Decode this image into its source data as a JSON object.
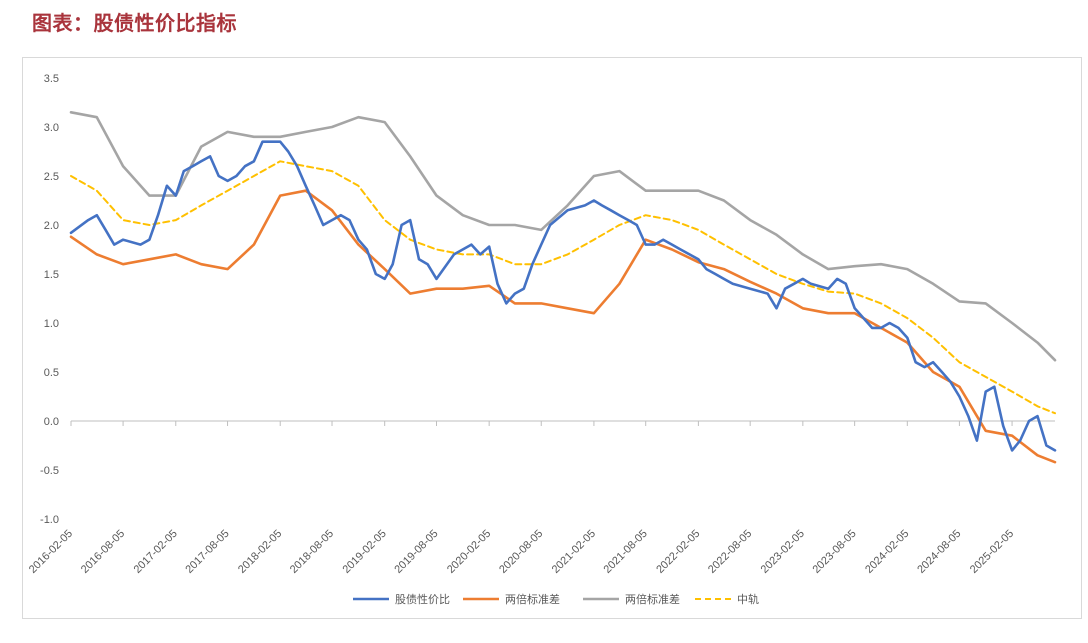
{
  "page": {
    "title": "图表：股债性价比指标"
  },
  "chart_data": {
    "type": "line",
    "title": "",
    "xlabel": "",
    "ylabel": "",
    "ylim": [
      -1.0,
      3.5
    ],
    "yticks": [
      -1.0,
      -0.5,
      0.0,
      0.5,
      1.0,
      1.5,
      2.0,
      2.5,
      3.0,
      3.5
    ],
    "ytick_labels": [
      "-1.0",
      "-0.5",
      "0.0",
      "0.5",
      "1.0",
      "1.5",
      "2.0",
      "2.5",
      "3.0",
      "3.5"
    ],
    "xticks": [
      "2016-02-05",
      "2016-08-05",
      "2017-02-05",
      "2017-08-05",
      "2018-02-05",
      "2018-08-05",
      "2019-02-05",
      "2019-08-05",
      "2020-02-05",
      "2020-08-05",
      "2021-02-05",
      "2021-08-05",
      "2022-02-05",
      "2022-08-05",
      "2023-02-05",
      "2023-08-05",
      "2024-02-05",
      "2024-08-05",
      "2025-02-05"
    ],
    "xlim": [
      "2016-02-05",
      "2025-07-05"
    ],
    "grid": false,
    "legend": "bottom",
    "series": [
      {
        "name": "股债性价比",
        "color": "#4472c4",
        "style": "solid",
        "x": [
          "2016-02-05",
          "2016-04-05",
          "2016-05-05",
          "2016-06-05",
          "2016-07-05",
          "2016-08-05",
          "2016-10-05",
          "2016-11-05",
          "2016-12-05",
          "2017-01-05",
          "2017-02-05",
          "2017-03-05",
          "2017-04-05",
          "2017-05-05",
          "2017-06-05",
          "2017-07-05",
          "2017-08-05",
          "2017-09-05",
          "2017-10-05",
          "2017-11-05",
          "2017-12-05",
          "2018-01-05",
          "2018-02-05",
          "2018-03-05",
          "2018-04-05",
          "2018-05-05",
          "2018-06-05",
          "2018-07-05",
          "2018-08-05",
          "2018-09-05",
          "2018-10-05",
          "2018-11-05",
          "2018-12-05",
          "2019-01-05",
          "2019-02-05",
          "2019-03-05",
          "2019-04-05",
          "2019-05-05",
          "2019-06-05",
          "2019-07-05",
          "2019-08-05",
          "2019-10-05",
          "2019-12-05",
          "2020-01-05",
          "2020-02-05",
          "2020-03-05",
          "2020-04-05",
          "2020-05-05",
          "2020-06-05",
          "2020-07-05",
          "2020-08-05",
          "2020-09-05",
          "2020-11-05",
          "2021-01-05",
          "2021-02-05",
          "2021-03-05",
          "2021-04-05",
          "2021-05-05",
          "2021-06-05",
          "2021-07-05",
          "2021-08-05",
          "2021-09-05",
          "2021-10-05",
          "2021-11-05",
          "2021-12-05",
          "2022-01-05",
          "2022-02-05",
          "2022-03-05",
          "2022-04-05",
          "2022-05-05",
          "2022-06-05",
          "2022-08-05",
          "2022-10-05",
          "2022-11-05",
          "2022-12-05",
          "2023-01-05",
          "2023-02-05",
          "2023-03-05",
          "2023-05-05",
          "2023-06-05",
          "2023-07-05",
          "2023-08-05",
          "2023-09-05",
          "2023-10-05",
          "2023-11-05",
          "2023-12-05",
          "2024-01-05",
          "2024-02-05",
          "2024-03-05",
          "2024-04-05",
          "2024-05-05",
          "2024-06-05",
          "2024-07-05",
          "2024-08-05",
          "2024-09-05",
          "2024-10-05",
          "2024-11-05",
          "2024-12-05",
          "2025-01-05",
          "2025-02-05",
          "2025-03-05",
          "2025-04-05",
          "2025-05-05",
          "2025-06-05",
          "2025-07-05"
        ],
        "y": [
          1.92,
          2.05,
          2.1,
          1.95,
          1.8,
          1.85,
          1.8,
          1.85,
          2.1,
          2.4,
          2.3,
          2.55,
          2.6,
          2.65,
          2.7,
          2.5,
          2.45,
          2.5,
          2.6,
          2.65,
          2.85,
          2.85,
          2.85,
          2.75,
          2.6,
          2.4,
          2.2,
          2.0,
          2.05,
          2.1,
          2.05,
          1.85,
          1.75,
          1.5,
          1.45,
          1.6,
          2.0,
          2.05,
          1.65,
          1.6,
          1.45,
          1.7,
          1.8,
          1.7,
          1.78,
          1.4,
          1.2,
          1.3,
          1.35,
          1.6,
          1.8,
          2.0,
          2.15,
          2.2,
          2.25,
          2.2,
          2.15,
          2.1,
          2.05,
          2.0,
          1.8,
          1.8,
          1.85,
          1.8,
          1.75,
          1.7,
          1.65,
          1.55,
          1.5,
          1.45,
          1.4,
          1.35,
          1.3,
          1.15,
          1.35,
          1.4,
          1.45,
          1.4,
          1.35,
          1.45,
          1.4,
          1.15,
          1.05,
          0.95,
          0.95,
          1.0,
          0.95,
          0.85,
          0.6,
          0.55,
          0.6,
          0.5,
          0.4,
          0.25,
          0.05,
          -0.2,
          0.3,
          0.35,
          -0.05,
          -0.3,
          -0.2,
          0.0,
          0.05,
          -0.25,
          -0.3
        ]
      },
      {
        "name": "两倍标准差",
        "color": "#ed7d31",
        "style": "solid",
        "x": [
          "2016-02-05",
          "2016-05-05",
          "2016-08-05",
          "2016-11-05",
          "2017-02-05",
          "2017-05-05",
          "2017-08-05",
          "2017-11-05",
          "2018-02-05",
          "2018-05-05",
          "2018-08-05",
          "2018-11-05",
          "2019-02-05",
          "2019-05-05",
          "2019-08-05",
          "2019-11-05",
          "2020-02-05",
          "2020-05-05",
          "2020-08-05",
          "2020-11-05",
          "2021-02-05",
          "2021-05-05",
          "2021-08-05",
          "2021-11-05",
          "2022-02-05",
          "2022-05-05",
          "2022-08-05",
          "2022-11-05",
          "2023-02-05",
          "2023-05-05",
          "2023-08-05",
          "2023-11-05",
          "2024-02-05",
          "2024-05-05",
          "2024-08-05",
          "2024-11-05",
          "2025-02-05",
          "2025-05-05",
          "2025-07-05"
        ],
        "y": [
          1.88,
          1.7,
          1.6,
          1.65,
          1.7,
          1.6,
          1.55,
          1.8,
          2.3,
          2.35,
          2.15,
          1.8,
          1.55,
          1.3,
          1.35,
          1.35,
          1.38,
          1.2,
          1.2,
          1.15,
          1.1,
          1.4,
          1.85,
          1.75,
          1.62,
          1.55,
          1.42,
          1.3,
          1.15,
          1.1,
          1.1,
          0.95,
          0.8,
          0.5,
          0.35,
          -0.1,
          -0.15,
          -0.35,
          -0.42
        ]
      },
      {
        "name": "两倍标准差",
        "color": "#a5a5a5",
        "style": "solid",
        "x": [
          "2016-02-05",
          "2016-05-05",
          "2016-08-05",
          "2016-11-05",
          "2017-02-05",
          "2017-05-05",
          "2017-08-05",
          "2017-11-05",
          "2018-02-05",
          "2018-05-05",
          "2018-08-05",
          "2018-11-05",
          "2019-02-05",
          "2019-05-05",
          "2019-08-05",
          "2019-11-05",
          "2020-02-05",
          "2020-05-05",
          "2020-08-05",
          "2020-11-05",
          "2021-02-05",
          "2021-05-05",
          "2021-08-05",
          "2021-11-05",
          "2022-02-05",
          "2022-05-05",
          "2022-08-05",
          "2022-11-05",
          "2023-02-05",
          "2023-05-05",
          "2023-08-05",
          "2023-11-05",
          "2024-02-05",
          "2024-05-05",
          "2024-08-05",
          "2024-11-05",
          "2025-02-05",
          "2025-05-05",
          "2025-07-05"
        ],
        "y": [
          3.15,
          3.1,
          2.6,
          2.3,
          2.3,
          2.8,
          2.95,
          2.9,
          2.9,
          2.95,
          3.0,
          3.1,
          3.05,
          2.7,
          2.3,
          2.1,
          2.0,
          2.0,
          1.95,
          2.2,
          2.5,
          2.55,
          2.35,
          2.35,
          2.35,
          2.25,
          2.05,
          1.9,
          1.7,
          1.55,
          1.58,
          1.6,
          1.55,
          1.4,
          1.22,
          1.2,
          1.0,
          0.8,
          0.62
        ]
      },
      {
        "name": "中轨",
        "color": "#ffc000",
        "style": "dashed",
        "x": [
          "2016-02-05",
          "2016-05-05",
          "2016-08-05",
          "2016-11-05",
          "2017-02-05",
          "2017-05-05",
          "2017-08-05",
          "2017-11-05",
          "2018-02-05",
          "2018-05-05",
          "2018-08-05",
          "2018-11-05",
          "2019-02-05",
          "2019-05-05",
          "2019-08-05",
          "2019-11-05",
          "2020-02-05",
          "2020-05-05",
          "2020-08-05",
          "2020-11-05",
          "2021-02-05",
          "2021-05-05",
          "2021-08-05",
          "2021-11-05",
          "2022-02-05",
          "2022-05-05",
          "2022-08-05",
          "2022-11-05",
          "2023-02-05",
          "2023-05-05",
          "2023-08-05",
          "2023-11-05",
          "2024-02-05",
          "2024-05-05",
          "2024-08-05",
          "2024-11-05",
          "2025-02-05",
          "2025-05-05",
          "2025-07-05"
        ],
        "y": [
          2.5,
          2.35,
          2.05,
          2.0,
          2.05,
          2.2,
          2.35,
          2.5,
          2.65,
          2.6,
          2.55,
          2.4,
          2.05,
          1.85,
          1.75,
          1.7,
          1.7,
          1.6,
          1.6,
          1.7,
          1.85,
          2.0,
          2.1,
          2.05,
          1.95,
          1.8,
          1.65,
          1.5,
          1.4,
          1.32,
          1.3,
          1.2,
          1.05,
          0.85,
          0.6,
          0.45,
          0.3,
          0.15,
          0.08
        ]
      }
    ]
  }
}
